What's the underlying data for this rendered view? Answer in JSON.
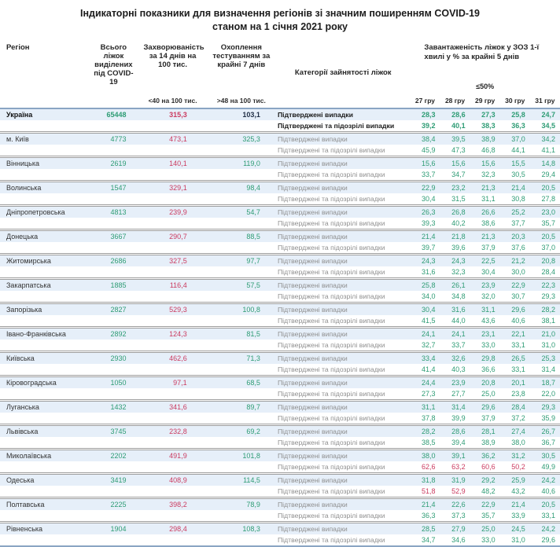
{
  "title": {
    "line1": "Індикаторні показники для визначення регіонів зі значним поширенням COVID-19",
    "line2": "станом на 1 січня 2021 року"
  },
  "colors": {
    "green": "#2e9c75",
    "red": "#cb3b60",
    "navy": "#223047",
    "row-blue": "#e6eff9",
    "line-blue": "#8aa5c3",
    "gray-text": "#8f8f8f"
  },
  "header": {
    "region": "Регіон",
    "beds": "Всього ліжок виділених під COVID-19",
    "incidence": "Захворюваність за 14 днів на 100 тис.",
    "testing": "Охоплення тестуванням за крайні 7 днів",
    "category": "Категорії зайнятості ліжок",
    "load": "Завантаженість ліжок у ЗОЗ 1-ї хвилі у % за крайні 5 днів",
    "incidence_threshold": "<40 на 100 тис.",
    "testing_threshold": ">48 на 100 тис.",
    "load_threshold": "≤50%",
    "dates": [
      "27 гру",
      "28 гру",
      "29 гру",
      "30 гру",
      "31 гру"
    ]
  },
  "row_labels": {
    "confirmed": "Підтверджені випадки",
    "confirmed_suspected": "Підтверджені та підозрілі випадки"
  },
  "load_red_above": 50,
  "rows": [
    {
      "region": "Україна",
      "bold": true,
      "beds": "65448",
      "incidence": "315,3",
      "testing": "103,1",
      "confirmed": [
        "28,3",
        "28,6",
        "27,3",
        "25,8",
        "24,7"
      ],
      "suspected": [
        "39,2",
        "40,1",
        "38,3",
        "36,3",
        "34,5"
      ]
    },
    {
      "region": "м. Київ",
      "beds": "4773",
      "incidence": "473,1",
      "testing": "325,3",
      "confirmed": [
        "38,4",
        "39,5",
        "38,9",
        "37,0",
        "34,2"
      ],
      "suspected": [
        "45,9",
        "47,3",
        "46,8",
        "44,1",
        "41,1"
      ]
    },
    {
      "region": "Вінницька",
      "beds": "2619",
      "incidence": "140,1",
      "testing": "119,0",
      "confirmed": [
        "15,6",
        "15,6",
        "15,6",
        "15,5",
        "14,8"
      ],
      "suspected": [
        "33,7",
        "34,7",
        "32,3",
        "30,5",
        "29,4"
      ]
    },
    {
      "region": "Волинська",
      "beds": "1547",
      "incidence": "329,1",
      "testing": "98,4",
      "confirmed": [
        "22,9",
        "23,2",
        "21,3",
        "21,4",
        "20,5"
      ],
      "suspected": [
        "30,4",
        "31,5",
        "31,1",
        "30,8",
        "27,8"
      ]
    },
    {
      "region": "Дніпропетровська",
      "beds": "4813",
      "incidence": "239,9",
      "testing": "54,7",
      "confirmed": [
        "26,3",
        "26,8",
        "26,6",
        "25,2",
        "23,0"
      ],
      "suspected": [
        "39,3",
        "40,2",
        "38,6",
        "37,7",
        "35,7"
      ]
    },
    {
      "region": "Донецька",
      "beds": "3667",
      "incidence": "290,7",
      "testing": "88,5",
      "confirmed": [
        "21,4",
        "21,8",
        "21,3",
        "20,3",
        "20,5"
      ],
      "suspected": [
        "39,7",
        "39,6",
        "37,9",
        "37,6",
        "37,0"
      ]
    },
    {
      "region": "Житомирська",
      "beds": "2686",
      "incidence": "327,5",
      "testing": "97,7",
      "confirmed": [
        "24,3",
        "24,3",
        "22,5",
        "21,2",
        "20,8"
      ],
      "suspected": [
        "31,6",
        "32,3",
        "30,4",
        "30,0",
        "28,4"
      ]
    },
    {
      "region": "Закарпатська",
      "beds": "1885",
      "incidence": "116,4",
      "testing": "57,5",
      "confirmed": [
        "25,8",
        "26,1",
        "23,9",
        "22,9",
        "22,3"
      ],
      "suspected": [
        "34,0",
        "34,8",
        "32,0",
        "30,7",
        "29,3"
      ]
    },
    {
      "region": "Запорізька",
      "beds": "2827",
      "incidence": "529,3",
      "testing": "100,8",
      "confirmed": [
        "30,4",
        "31,6",
        "31,1",
        "29,6",
        "28,2"
      ],
      "suspected": [
        "41,5",
        "44,0",
        "43,6",
        "40,6",
        "38,1"
      ]
    },
    {
      "region": "Івано-Франківська",
      "beds": "2892",
      "incidence": "124,3",
      "testing": "81,5",
      "confirmed": [
        "24,1",
        "24,1",
        "23,1",
        "22,1",
        "21,0"
      ],
      "suspected": [
        "32,7",
        "33,7",
        "33,0",
        "33,1",
        "31,0"
      ]
    },
    {
      "region": "Київська",
      "beds": "2930",
      "incidence": "462,6",
      "testing": "71,3",
      "confirmed": [
        "33,4",
        "32,6",
        "29,8",
        "26,5",
        "25,3"
      ],
      "suspected": [
        "41,4",
        "40,3",
        "36,6",
        "33,1",
        "31,4"
      ]
    },
    {
      "region": "Кіровоградська",
      "beds": "1050",
      "incidence": "97,1",
      "testing": "68,5",
      "confirmed": [
        "24,4",
        "23,9",
        "20,8",
        "20,1",
        "18,7"
      ],
      "suspected": [
        "27,3",
        "27,7",
        "25,0",
        "23,8",
        "22,0"
      ]
    },
    {
      "region": "Луганська",
      "beds": "1432",
      "incidence": "341,6",
      "testing": "89,7",
      "confirmed": [
        "31,1",
        "31,4",
        "29,6",
        "28,4",
        "29,3"
      ],
      "suspected": [
        "37,8",
        "39,9",
        "37,9",
        "37,2",
        "35,9"
      ]
    },
    {
      "region": "Львівська",
      "beds": "3745",
      "incidence": "232,8",
      "testing": "69,2",
      "confirmed": [
        "28,2",
        "28,6",
        "28,1",
        "27,4",
        "26,7"
      ],
      "suspected": [
        "38,5",
        "39,4",
        "38,9",
        "38,0",
        "36,7"
      ]
    },
    {
      "region": "Миколаївська",
      "beds": "2202",
      "incidence": "491,9",
      "testing": "101,8",
      "confirmed": [
        "38,0",
        "39,1",
        "36,2",
        "31,2",
        "30,5"
      ],
      "suspected": [
        "62,6",
        "63,2",
        "60,6",
        "50,2",
        "49,9"
      ]
    },
    {
      "region": "Одеська",
      "beds": "3419",
      "incidence": "408,9",
      "testing": "114,5",
      "confirmed": [
        "31,8",
        "31,9",
        "29,2",
        "25,9",
        "24,2"
      ],
      "suspected": [
        "51,8",
        "52,9",
        "48,2",
        "43,2",
        "40,6"
      ]
    },
    {
      "region": "Полтавська",
      "beds": "2225",
      "incidence": "398,2",
      "testing": "78,9",
      "confirmed": [
        "21,4",
        "22,6",
        "22,9",
        "21,4",
        "20,5"
      ],
      "suspected": [
        "36,3",
        "37,3",
        "35,7",
        "33,9",
        "33,1"
      ]
    },
    {
      "region": "Рівненська",
      "beds": "1904",
      "incidence": "298,4",
      "testing": "108,3",
      "confirmed": [
        "28,5",
        "27,9",
        "25,0",
        "24,5",
        "24,2"
      ],
      "suspected": [
        "34,7",
        "34,6",
        "33,0",
        "31,0",
        "29,6"
      ]
    }
  ]
}
